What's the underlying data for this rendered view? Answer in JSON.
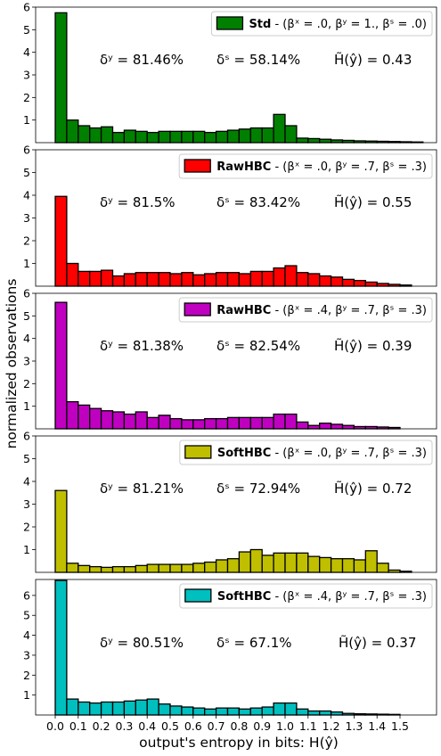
{
  "ylabel": "normalized observations",
  "xlabel": "output's entropy in bits: H(ŷ)",
  "xticks": [
    "0.0",
    "0.1",
    "0.2",
    "0.3",
    "0.4",
    "0.5",
    "0.6",
    "0.7",
    "0.8",
    "0.9",
    "1.0",
    "1.1",
    "1.2",
    "1.3",
    "1.4",
    "1.5"
  ],
  "chart_data": [
    {
      "type": "bar",
      "legend": {
        "name": "Std",
        "params": " - (βˣ = .0, βʸ = 1., βˢ = .0)"
      },
      "color": "#008000",
      "stats": {
        "delta_y": "δʸ =  81.46%",
        "delta_s": "δˢ = 58.14%",
        "entropy": "H̃(ŷ) = 0.43"
      },
      "ylim": [
        0,
        6
      ],
      "yticks": [
        "1",
        "2",
        "3",
        "4",
        "5",
        "6"
      ],
      "bin_width": 0.05,
      "x": [
        0.0,
        0.05,
        0.1,
        0.15,
        0.2,
        0.25,
        0.3,
        0.35,
        0.4,
        0.45,
        0.5,
        0.55,
        0.6,
        0.65,
        0.7,
        0.75,
        0.8,
        0.85,
        0.9,
        0.95,
        1.0,
        1.05,
        1.1,
        1.15,
        1.2,
        1.25,
        1.3,
        1.35,
        1.4,
        1.45,
        1.5,
        1.55
      ],
      "values": [
        5.75,
        1.0,
        0.75,
        0.65,
        0.7,
        0.45,
        0.55,
        0.5,
        0.45,
        0.5,
        0.5,
        0.5,
        0.5,
        0.45,
        0.5,
        0.55,
        0.6,
        0.65,
        0.65,
        1.25,
        0.75,
        0.2,
        0.18,
        0.15,
        0.12,
        0.1,
        0.08,
        0.07,
        0.06,
        0.05,
        0.04,
        0.03
      ]
    },
    {
      "type": "bar",
      "legend": {
        "name": "RawHBC",
        "params": " - (βˣ = .0, βʸ = .7, βˢ = .3)"
      },
      "color": "#ff0000",
      "stats": {
        "delta_y": "δʸ =  81.5%",
        "delta_s": "δˢ = 83.42%",
        "entropy": "H̃(ŷ) = 0.55"
      },
      "ylim": [
        0,
        6
      ],
      "yticks": [
        "1",
        "2",
        "3",
        "4",
        "5",
        "6"
      ],
      "bin_width": 0.05,
      "x": [
        0.0,
        0.05,
        0.1,
        0.15,
        0.2,
        0.25,
        0.3,
        0.35,
        0.4,
        0.45,
        0.5,
        0.55,
        0.6,
        0.65,
        0.7,
        0.75,
        0.8,
        0.85,
        0.9,
        0.95,
        1.0,
        1.05,
        1.1,
        1.15,
        1.2,
        1.25,
        1.3,
        1.35,
        1.4,
        1.45,
        1.5
      ],
      "values": [
        3.95,
        1.0,
        0.65,
        0.65,
        0.7,
        0.45,
        0.55,
        0.6,
        0.6,
        0.6,
        0.55,
        0.6,
        0.5,
        0.55,
        0.6,
        0.6,
        0.55,
        0.65,
        0.65,
        0.8,
        0.9,
        0.6,
        0.55,
        0.45,
        0.4,
        0.3,
        0.25,
        0.18,
        0.12,
        0.08,
        0.05
      ]
    },
    {
      "type": "bar",
      "legend": {
        "name": "RawHBC",
        "params": " - (βˣ = .4, βʸ = .7, βˢ = .3)"
      },
      "color": "#c000c0",
      "stats": {
        "delta_y": "δʸ =  81.38%",
        "delta_s": "δˢ = 82.54%",
        "entropy": "H̃(ŷ) = 0.39"
      },
      "ylim": [
        0,
        6
      ],
      "yticks": [
        "1",
        "2",
        "3",
        "4",
        "5",
        "6"
      ],
      "bin_width": 0.05,
      "x": [
        0.0,
        0.05,
        0.1,
        0.15,
        0.2,
        0.25,
        0.3,
        0.35,
        0.4,
        0.45,
        0.5,
        0.55,
        0.6,
        0.65,
        0.7,
        0.75,
        0.8,
        0.85,
        0.9,
        0.95,
        1.0,
        1.05,
        1.1,
        1.15,
        1.2,
        1.25,
        1.3,
        1.35,
        1.4,
        1.45
      ],
      "values": [
        5.6,
        1.2,
        1.05,
        0.9,
        0.8,
        0.75,
        0.65,
        0.75,
        0.5,
        0.6,
        0.45,
        0.4,
        0.4,
        0.45,
        0.45,
        0.5,
        0.5,
        0.5,
        0.5,
        0.65,
        0.65,
        0.3,
        0.15,
        0.25,
        0.2,
        0.15,
        0.1,
        0.1,
        0.08,
        0.06
      ]
    },
    {
      "type": "bar",
      "legend": {
        "name": "SoftHBC",
        "params": " - (βˣ = .0, βʸ = .7, βˢ = .3)"
      },
      "color": "#bfbf00",
      "stats": {
        "delta_y": "δʸ =  81.21%",
        "delta_s": "δˢ = 72.94%",
        "entropy": "H̃(ŷ) = 0.72"
      },
      "ylim": [
        0,
        6
      ],
      "yticks": [
        "1",
        "2",
        "3",
        "4",
        "5",
        "6"
      ],
      "bin_width": 0.05,
      "x": [
        0.0,
        0.05,
        0.1,
        0.15,
        0.2,
        0.25,
        0.3,
        0.35,
        0.4,
        0.45,
        0.5,
        0.55,
        0.6,
        0.65,
        0.7,
        0.75,
        0.8,
        0.85,
        0.9,
        0.95,
        1.0,
        1.05,
        1.1,
        1.15,
        1.2,
        1.25,
        1.3,
        1.35,
        1.4,
        1.45,
        1.5
      ],
      "values": [
        3.6,
        0.4,
        0.3,
        0.25,
        0.22,
        0.25,
        0.25,
        0.3,
        0.35,
        0.35,
        0.35,
        0.35,
        0.4,
        0.45,
        0.55,
        0.6,
        0.9,
        1.0,
        0.75,
        0.85,
        0.85,
        0.85,
        0.7,
        0.65,
        0.6,
        0.6,
        0.55,
        0.95,
        0.4,
        0.1,
        0.05
      ]
    },
    {
      "type": "bar",
      "legend": {
        "name": "SoftHBC",
        "params": " - (βˣ = .4, βʸ = .7, βˢ = .3)"
      },
      "color": "#00bfbf",
      "stats": {
        "delta_y": "δʸ =  80.51%",
        "delta_s": "δˢ = 67.1%",
        "entropy": "H̃(ŷ) = 0.37"
      },
      "ylim": [
        0,
        6.8
      ],
      "yticks": [
        "1",
        "2",
        "3",
        "4",
        "5",
        "6"
      ],
      "bin_width": 0.05,
      "x": [
        0.0,
        0.05,
        0.1,
        0.15,
        0.2,
        0.25,
        0.3,
        0.35,
        0.4,
        0.45,
        0.5,
        0.55,
        0.6,
        0.65,
        0.7,
        0.75,
        0.8,
        0.85,
        0.9,
        0.95,
        1.0,
        1.05,
        1.1,
        1.15,
        1.2,
        1.25,
        1.3,
        1.35,
        1.4,
        1.45
      ],
      "values": [
        6.75,
        0.8,
        0.65,
        0.6,
        0.65,
        0.65,
        0.7,
        0.75,
        0.8,
        0.55,
        0.45,
        0.4,
        0.35,
        0.3,
        0.35,
        0.35,
        0.3,
        0.35,
        0.4,
        0.6,
        0.6,
        0.3,
        0.2,
        0.2,
        0.15,
        0.08,
        0.06,
        0.05,
        0.04,
        0.03
      ]
    }
  ]
}
